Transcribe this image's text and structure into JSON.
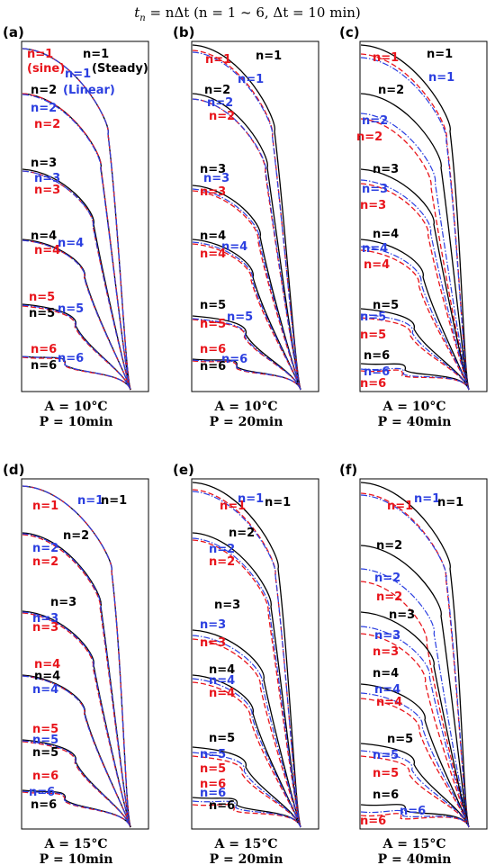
{
  "figure": {
    "title": "t_n = nΔt (n = 1 ~ 6, Δt = 10 min)",
    "title_parts": {
      "t": "t",
      "sub": "n",
      "rest": " = nΔt (n = 1 ~ 6, Δt = 10 min)"
    }
  },
  "legend_text": {
    "sine": "(sine)",
    "linear": "(Linear)",
    "steady": "(Steady)"
  },
  "colors": {
    "steady": "#000000",
    "sine": "#e8141b",
    "linear": "#2b3fe0"
  },
  "chart_data": [
    {
      "panel": "(a)",
      "type": "line",
      "caption": [
        "A = 10°C",
        "P = 10min"
      ],
      "amplitude_C": 10,
      "period_min": 10,
      "series": [
        "Steady (black solid)",
        "sine (red dashed)",
        "Linear (blue dash-dot)"
      ],
      "labels": [
        {
          "text": "n=1",
          "series": "sine",
          "note": "n=1 (sine)"
        },
        {
          "text": "n=1",
          "series": "Linear",
          "note": "n=1 (Linear)"
        },
        {
          "text": "n=1",
          "series": "Steady",
          "note": "n=1 (Steady)"
        },
        {
          "text": "n=2",
          "series": "Steady"
        },
        {
          "text": "n=2",
          "series": "Linear"
        },
        {
          "text": "n=2",
          "series": "sine"
        },
        {
          "text": "n=3",
          "series": "Steady"
        },
        {
          "text": "n=3",
          "series": "Linear"
        },
        {
          "text": "n=3",
          "series": "sine"
        },
        {
          "text": "n=4",
          "series": "Steady"
        },
        {
          "text": "n=4",
          "series": "Linear"
        },
        {
          "text": "n=4",
          "series": "sine"
        },
        {
          "text": "n=5",
          "series": "sine"
        },
        {
          "text": "n=5",
          "series": "Steady"
        },
        {
          "text": "n=5",
          "series": "Linear"
        },
        {
          "text": "n=6",
          "series": "sine"
        },
        {
          "text": "n=6",
          "series": "Linear"
        },
        {
          "text": "n=6",
          "series": "Steady"
        }
      ]
    },
    {
      "panel": "(b)",
      "type": "line",
      "caption": [
        "A = 10°C",
        "P = 20min"
      ],
      "amplitude_C": 10,
      "period_min": 20,
      "labels": [
        {
          "text": "n=1",
          "series": "sine"
        },
        {
          "text": "n=1",
          "series": "Steady"
        },
        {
          "text": "n=1",
          "series": "Linear"
        },
        {
          "text": "n=2",
          "series": "Steady"
        },
        {
          "text": "n=2",
          "series": "Linear"
        },
        {
          "text": "n=2",
          "series": "sine"
        },
        {
          "text": "n=3",
          "series": "Steady"
        },
        {
          "text": "n=3",
          "series": "Linear"
        },
        {
          "text": "n=3",
          "series": "sine"
        },
        {
          "text": "n=4",
          "series": "Steady"
        },
        {
          "text": "n=4",
          "series": "Linear"
        },
        {
          "text": "n=4",
          "series": "sine"
        },
        {
          "text": "n=5",
          "series": "Steady"
        },
        {
          "text": "n=5",
          "series": "Linear"
        },
        {
          "text": "n=5",
          "series": "sine"
        },
        {
          "text": "n=6",
          "series": "sine"
        },
        {
          "text": "n=6",
          "series": "Linear"
        },
        {
          "text": "n=6",
          "series": "Steady"
        }
      ]
    },
    {
      "panel": "(c)",
      "type": "line",
      "caption": [
        "A = 10°C",
        "P = 40min"
      ],
      "amplitude_C": 10,
      "period_min": 40,
      "labels": [
        {
          "text": "n=1",
          "series": "sine"
        },
        {
          "text": "n=1",
          "series": "Steady"
        },
        {
          "text": "n=1",
          "series": "Linear"
        },
        {
          "text": "n=2",
          "series": "Steady"
        },
        {
          "text": "n=2",
          "series": "Linear"
        },
        {
          "text": "n=2",
          "series": "sine"
        },
        {
          "text": "n=3",
          "series": "Steady"
        },
        {
          "text": "n=3",
          "series": "Linear"
        },
        {
          "text": "n=3",
          "series": "sine"
        },
        {
          "text": "n=4",
          "series": "Steady"
        },
        {
          "text": "n=4",
          "series": "Linear"
        },
        {
          "text": "n=4",
          "series": "sine"
        },
        {
          "text": "n=5",
          "series": "Steady"
        },
        {
          "text": "n=5",
          "series": "Linear"
        },
        {
          "text": "n=5",
          "series": "sine"
        },
        {
          "text": "n=6",
          "series": "Steady"
        },
        {
          "text": "n=6",
          "series": "Linear"
        },
        {
          "text": "n=6",
          "series": "sine"
        }
      ]
    },
    {
      "panel": "(d)",
      "type": "line",
      "caption": [
        "A = 15°C",
        "P = 10min"
      ],
      "amplitude_C": 15,
      "period_min": 10,
      "labels": [
        {
          "text": "n=1",
          "series": "sine"
        },
        {
          "text": "n=1",
          "series": "Linear"
        },
        {
          "text": "n=1",
          "series": "Steady"
        },
        {
          "text": "n=2",
          "series": "Steady"
        },
        {
          "text": "n=2",
          "series": "Linear"
        },
        {
          "text": "n=2",
          "series": "sine"
        },
        {
          "text": "n=3",
          "series": "Steady"
        },
        {
          "text": "n=3",
          "series": "Linear"
        },
        {
          "text": "n=3",
          "series": "sine"
        },
        {
          "text": "n=4",
          "series": "sine"
        },
        {
          "text": "n=4",
          "series": "Steady"
        },
        {
          "text": "n=4",
          "series": "Linear"
        },
        {
          "text": "n=5",
          "series": "sine"
        },
        {
          "text": "n=5",
          "series": "Linear"
        },
        {
          "text": "n=5",
          "series": "Steady"
        },
        {
          "text": "n=6",
          "series": "sine"
        },
        {
          "text": "n=6",
          "series": "Linear"
        },
        {
          "text": "n=6",
          "series": "Steady"
        }
      ]
    },
    {
      "panel": "(e)",
      "type": "line",
      "caption": [
        "A = 15°C",
        "P = 20min"
      ],
      "amplitude_C": 15,
      "period_min": 20,
      "labels": [
        {
          "text": "n=1",
          "series": "sine"
        },
        {
          "text": "n=1",
          "series": "Linear"
        },
        {
          "text": "n=1",
          "series": "Steady"
        },
        {
          "text": "n=2",
          "series": "Steady"
        },
        {
          "text": "n=2",
          "series": "Linear"
        },
        {
          "text": "n=2",
          "series": "sine"
        },
        {
          "text": "n=3",
          "series": "Steady"
        },
        {
          "text": "n=3",
          "series": "Linear"
        },
        {
          "text": "n=3",
          "series": "sine"
        },
        {
          "text": "n=4",
          "series": "Steady"
        },
        {
          "text": "n=4",
          "series": "Linear"
        },
        {
          "text": "n=4",
          "series": "sine"
        },
        {
          "text": "n=5",
          "series": "Steady"
        },
        {
          "text": "n=5",
          "series": "Linear"
        },
        {
          "text": "n=5",
          "series": "sine"
        },
        {
          "text": "n=6",
          "series": "sine"
        },
        {
          "text": "n=6",
          "series": "Linear"
        },
        {
          "text": "n=6",
          "series": "Steady"
        }
      ]
    },
    {
      "panel": "(f)",
      "type": "line",
      "caption": [
        "A = 15°C",
        "P = 40min"
      ],
      "amplitude_C": 15,
      "period_min": 40,
      "labels": [
        {
          "text": "n=1",
          "series": "sine"
        },
        {
          "text": "n=1",
          "series": "Linear"
        },
        {
          "text": "n=1",
          "series": "Steady"
        },
        {
          "text": "n=2",
          "series": "Steady"
        },
        {
          "text": "n=2",
          "series": "Linear"
        },
        {
          "text": "n=2",
          "series": "sine"
        },
        {
          "text": "n=3",
          "series": "Steady"
        },
        {
          "text": "n=3",
          "series": "Linear"
        },
        {
          "text": "n=3",
          "series": "sine"
        },
        {
          "text": "n=4",
          "series": "Steady"
        },
        {
          "text": "n=4",
          "series": "Linear"
        },
        {
          "text": "n=4",
          "series": "sine"
        },
        {
          "text": "n=5",
          "series": "Steady"
        },
        {
          "text": "n=5",
          "series": "Linear"
        },
        {
          "text": "n=5",
          "series": "sine"
        },
        {
          "text": "n=6",
          "series": "Steady"
        },
        {
          "text": "n=6",
          "series": "Linear"
        },
        {
          "text": "n=6",
          "series": "sine"
        }
      ]
    }
  ]
}
